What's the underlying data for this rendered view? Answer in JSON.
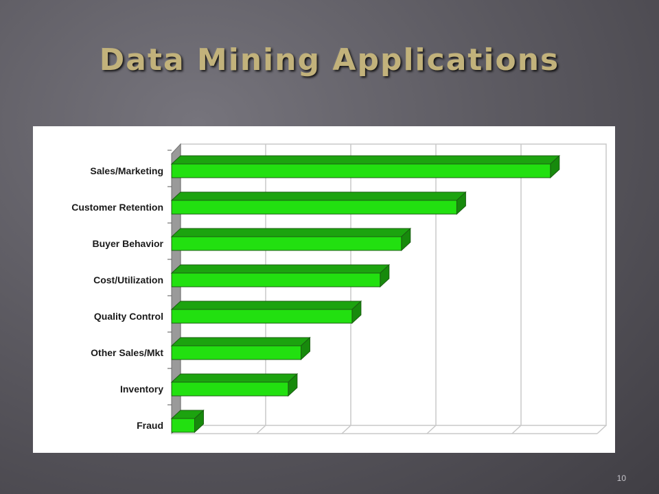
{
  "slide": {
    "title": "Data Mining Applications",
    "number": "10"
  },
  "chart_data": {
    "type": "bar",
    "orientation": "horizontal",
    "categories": [
      "Sales/Marketing",
      "Customer Retention",
      "Buyer Behavior",
      "Cost/Utilization",
      "Quality Control",
      "Other Sales/Mkt",
      "Inventory",
      "Fraud"
    ],
    "values": [
      4.45,
      3.35,
      2.7,
      2.45,
      2.12,
      1.52,
      1.37,
      0.27
    ],
    "xlim": [
      0,
      5
    ],
    "title": "",
    "xlabel": "",
    "ylabel": "",
    "grid": true,
    "legend": "none",
    "style": "3d",
    "colors": {
      "bar_front": "#22e010",
      "bar_top": "#1ca30f",
      "bar_side": "#178a0c",
      "bar_edge": "#1b5e12",
      "grid": "#c8c8c8",
      "wall": "#9a9a9a"
    }
  }
}
